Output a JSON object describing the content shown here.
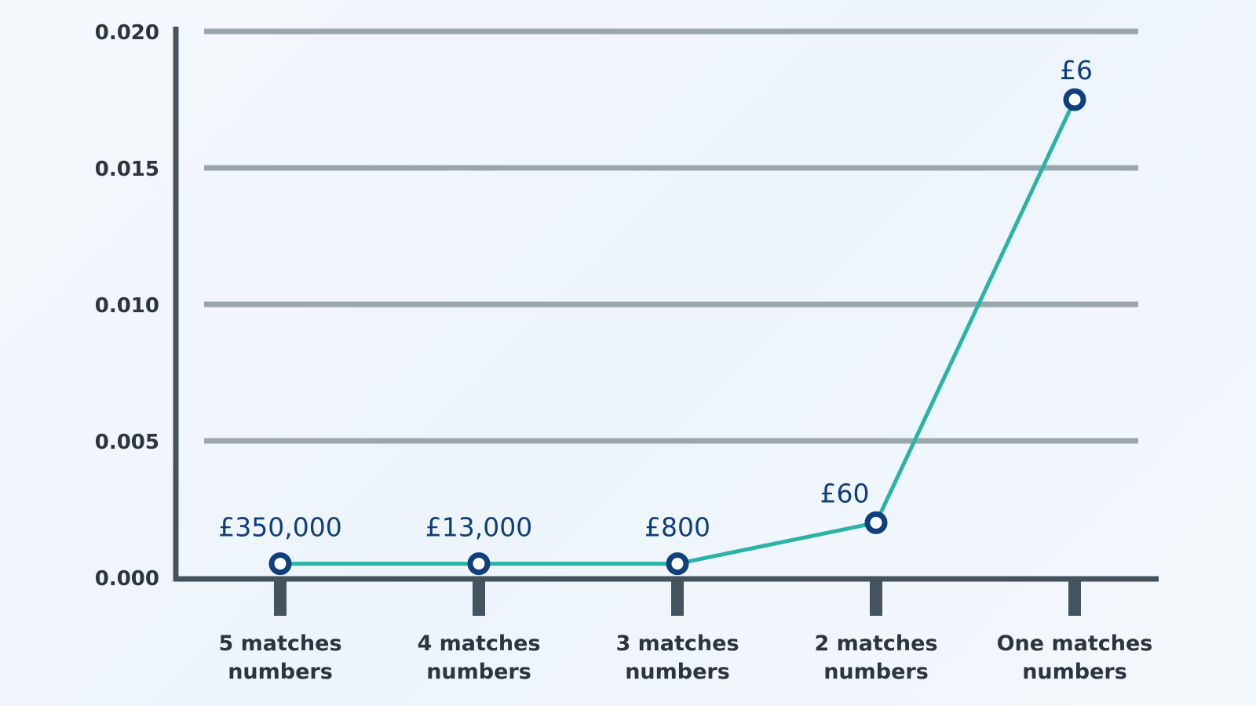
{
  "chart_data": {
    "type": "line",
    "categories": [
      [
        "5 matches",
        "numbers"
      ],
      [
        "4 matches",
        "numbers"
      ],
      [
        "3 matches",
        "numbers"
      ],
      [
        "2 matches",
        "numbers"
      ],
      [
        "One matches",
        "numbers"
      ]
    ],
    "series": [
      {
        "values": [
          0.0005,
          0.0005,
          0.0005,
          0.002,
          0.0175
        ],
        "data_labels": [
          "£350,000",
          "£13,000",
          "£800",
          "£60",
          "£6"
        ]
      }
    ],
    "y_ticks": [
      "0.000",
      "0.005",
      "0.010",
      "0.015",
      "0.020"
    ],
    "ylim": [
      0,
      0.02
    ],
    "grid": true,
    "xlabel": "",
    "ylabel": "",
    "title": ""
  },
  "colors": {
    "line": "#2ab3a6",
    "marker_stroke": "#0f3f7d",
    "marker_fill": "#ffffff",
    "grid": "#9aa6ad",
    "axis": "#44535e",
    "data_label": "#103e7a",
    "text": "#2c3440"
  }
}
